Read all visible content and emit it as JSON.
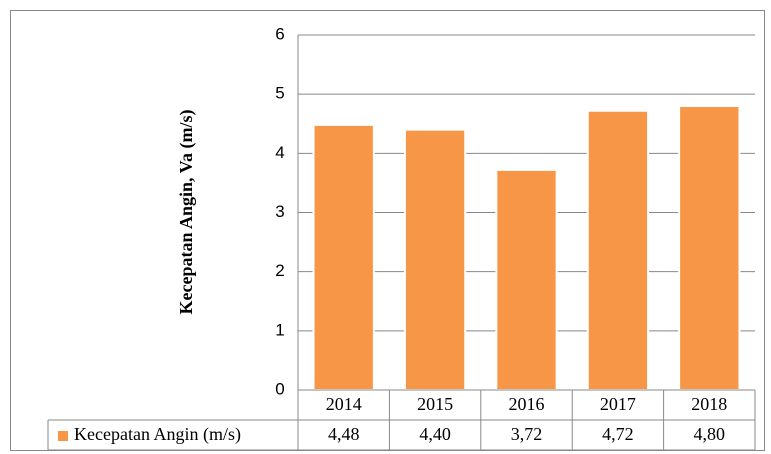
{
  "chart_data": {
    "type": "bar",
    "y_axis_label": "Kecepatan Angin, Va (m/s)",
    "categories": [
      "2014",
      "2015",
      "2016",
      "2017",
      "2018"
    ],
    "series": [
      {
        "name": "Kecepatan Angin (m/s)",
        "color": "#f79646",
        "values": [
          4.48,
          4.4,
          3.72,
          4.72,
          4.8
        ],
        "value_labels": [
          "4,48",
          "4,40",
          "3,72",
          "4,72",
          "4,80"
        ]
      }
    ],
    "ylim": [
      0,
      6
    ],
    "yticks": [
      0,
      1,
      2,
      3,
      4,
      5,
      6
    ],
    "grid": true,
    "data_table": true
  }
}
